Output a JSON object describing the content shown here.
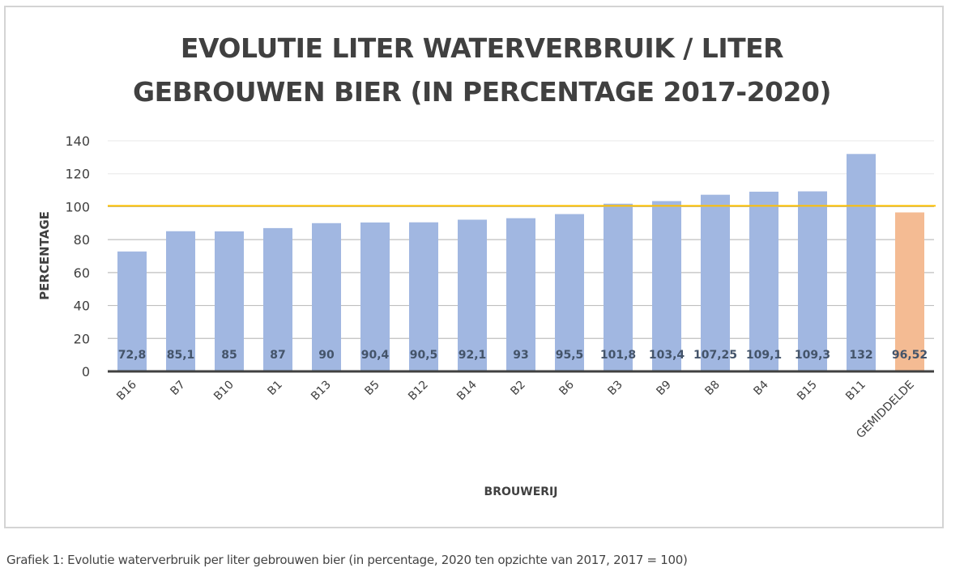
{
  "chart_data": {
    "type": "bar",
    "title_lines": [
      "EVOLUTIE LITER WATERVERBRUIK / LITER",
      "GEBROUWEN BIER (IN PERCENTAGE 2017-2020)"
    ],
    "xlabel": "BROUWERIJ",
    "ylabel": "PERCENTAGE",
    "ylim": [
      0,
      140
    ],
    "yticks": [
      0,
      20,
      40,
      60,
      80,
      100,
      120,
      140
    ],
    "grid": true,
    "categories": [
      "B16",
      "B7",
      "B10",
      "B1",
      "B13",
      "B5",
      "B12",
      "B14",
      "B2",
      "B6",
      "B3",
      "B9",
      "B8",
      "B4",
      "B15",
      "B11",
      "GEMIDDELDE"
    ],
    "values": [
      72.8,
      85.1,
      85,
      87,
      90,
      90.4,
      90.5,
      92.1,
      93,
      95.5,
      101.8,
      103.4,
      107.25,
      109.1,
      109.3,
      132,
      96.52
    ],
    "data_labels": [
      "72,8",
      "85,1",
      "85",
      "87",
      "90",
      "90,4",
      "90,5",
      "92,1",
      "93",
      "95,5",
      "101,8",
      "103,4",
      "107,25",
      "109,1",
      "109,3",
      "132",
      "96,52"
    ],
    "highlight_category": "GEMIDDELDE",
    "reference_line": {
      "value": 100,
      "color": "#ffc000"
    },
    "colors": {
      "bar": "#a1b7e1",
      "highlight": "#f4bb93",
      "label": "#44546a",
      "axis": "#404040"
    }
  },
  "caption": "Grafiek 1: Evolutie waterverbruik per liter gebrouwen bier (in percentage, 2020 ten opzichte van 2017, 2017 = 100)"
}
